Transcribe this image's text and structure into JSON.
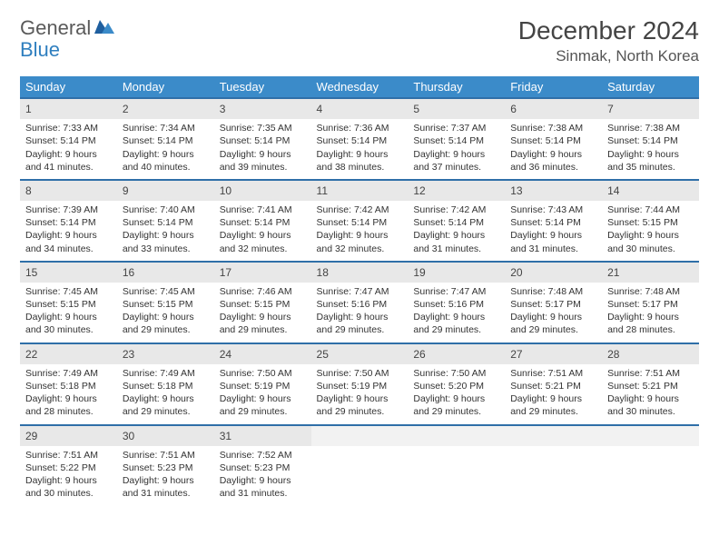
{
  "logo": {
    "text1": "General",
    "text2": "Blue"
  },
  "title": "December 2024",
  "location": "Sinmak, North Korea",
  "colors": {
    "header_bg": "#3b8bc9",
    "row_divider": "#2f6fa8",
    "daynum_bg": "#e8e8e8",
    "logo_gray": "#5a5a5a",
    "logo_blue": "#2f7fbf"
  },
  "weekdays": [
    "Sunday",
    "Monday",
    "Tuesday",
    "Wednesday",
    "Thursday",
    "Friday",
    "Saturday"
  ],
  "weeks": [
    [
      {
        "n": "1",
        "sr": "7:33 AM",
        "ss": "5:14 PM",
        "dl": "9 hours and 41 minutes."
      },
      {
        "n": "2",
        "sr": "7:34 AM",
        "ss": "5:14 PM",
        "dl": "9 hours and 40 minutes."
      },
      {
        "n": "3",
        "sr": "7:35 AM",
        "ss": "5:14 PM",
        "dl": "9 hours and 39 minutes."
      },
      {
        "n": "4",
        "sr": "7:36 AM",
        "ss": "5:14 PM",
        "dl": "9 hours and 38 minutes."
      },
      {
        "n": "5",
        "sr": "7:37 AM",
        "ss": "5:14 PM",
        "dl": "9 hours and 37 minutes."
      },
      {
        "n": "6",
        "sr": "7:38 AM",
        "ss": "5:14 PM",
        "dl": "9 hours and 36 minutes."
      },
      {
        "n": "7",
        "sr": "7:38 AM",
        "ss": "5:14 PM",
        "dl": "9 hours and 35 minutes."
      }
    ],
    [
      {
        "n": "8",
        "sr": "7:39 AM",
        "ss": "5:14 PM",
        "dl": "9 hours and 34 minutes."
      },
      {
        "n": "9",
        "sr": "7:40 AM",
        "ss": "5:14 PM",
        "dl": "9 hours and 33 minutes."
      },
      {
        "n": "10",
        "sr": "7:41 AM",
        "ss": "5:14 PM",
        "dl": "9 hours and 32 minutes."
      },
      {
        "n": "11",
        "sr": "7:42 AM",
        "ss": "5:14 PM",
        "dl": "9 hours and 32 minutes."
      },
      {
        "n": "12",
        "sr": "7:42 AM",
        "ss": "5:14 PM",
        "dl": "9 hours and 31 minutes."
      },
      {
        "n": "13",
        "sr": "7:43 AM",
        "ss": "5:14 PM",
        "dl": "9 hours and 31 minutes."
      },
      {
        "n": "14",
        "sr": "7:44 AM",
        "ss": "5:15 PM",
        "dl": "9 hours and 30 minutes."
      }
    ],
    [
      {
        "n": "15",
        "sr": "7:45 AM",
        "ss": "5:15 PM",
        "dl": "9 hours and 30 minutes."
      },
      {
        "n": "16",
        "sr": "7:45 AM",
        "ss": "5:15 PM",
        "dl": "9 hours and 29 minutes."
      },
      {
        "n": "17",
        "sr": "7:46 AM",
        "ss": "5:15 PM",
        "dl": "9 hours and 29 minutes."
      },
      {
        "n": "18",
        "sr": "7:47 AM",
        "ss": "5:16 PM",
        "dl": "9 hours and 29 minutes."
      },
      {
        "n": "19",
        "sr": "7:47 AM",
        "ss": "5:16 PM",
        "dl": "9 hours and 29 minutes."
      },
      {
        "n": "20",
        "sr": "7:48 AM",
        "ss": "5:17 PM",
        "dl": "9 hours and 29 minutes."
      },
      {
        "n": "21",
        "sr": "7:48 AM",
        "ss": "5:17 PM",
        "dl": "9 hours and 28 minutes."
      }
    ],
    [
      {
        "n": "22",
        "sr": "7:49 AM",
        "ss": "5:18 PM",
        "dl": "9 hours and 28 minutes."
      },
      {
        "n": "23",
        "sr": "7:49 AM",
        "ss": "5:18 PM",
        "dl": "9 hours and 29 minutes."
      },
      {
        "n": "24",
        "sr": "7:50 AM",
        "ss": "5:19 PM",
        "dl": "9 hours and 29 minutes."
      },
      {
        "n": "25",
        "sr": "7:50 AM",
        "ss": "5:19 PM",
        "dl": "9 hours and 29 minutes."
      },
      {
        "n": "26",
        "sr": "7:50 AM",
        "ss": "5:20 PM",
        "dl": "9 hours and 29 minutes."
      },
      {
        "n": "27",
        "sr": "7:51 AM",
        "ss": "5:21 PM",
        "dl": "9 hours and 29 minutes."
      },
      {
        "n": "28",
        "sr": "7:51 AM",
        "ss": "5:21 PM",
        "dl": "9 hours and 30 minutes."
      }
    ],
    [
      {
        "n": "29",
        "sr": "7:51 AM",
        "ss": "5:22 PM",
        "dl": "9 hours and 30 minutes."
      },
      {
        "n": "30",
        "sr": "7:51 AM",
        "ss": "5:23 PM",
        "dl": "9 hours and 31 minutes."
      },
      {
        "n": "31",
        "sr": "7:52 AM",
        "ss": "5:23 PM",
        "dl": "9 hours and 31 minutes."
      },
      null,
      null,
      null,
      null
    ]
  ],
  "labels": {
    "sunrise": "Sunrise:",
    "sunset": "Sunset:",
    "daylight": "Daylight:"
  }
}
